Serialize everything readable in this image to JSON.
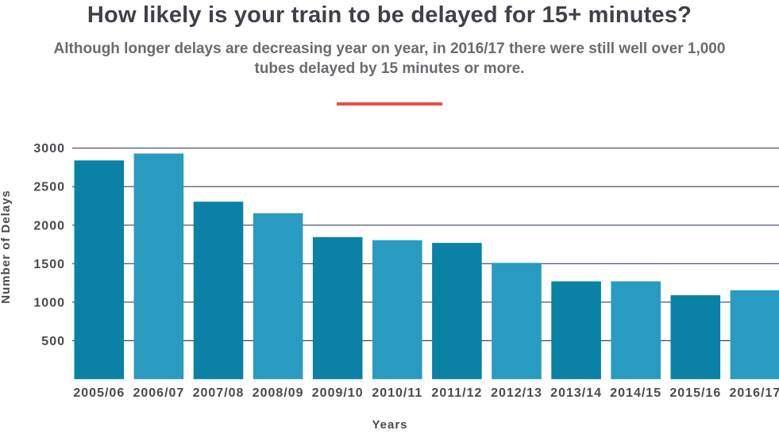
{
  "header": {
    "title": "How likely is your train to be delayed for 15+ minutes?",
    "subtitle": "Although longer delays are decreasing year on year, in 2016/17 there were still well over 1,000 tubes delayed by 15 minutes or more.",
    "accent_color": "#ec4b4b"
  },
  "chart_data": {
    "type": "bar",
    "title": "",
    "xlabel": "Years",
    "ylabel": "Number of Delays",
    "categories": [
      "2005/06",
      "2006/07",
      "2007/08",
      "2008/09",
      "2009/10",
      "2010/11",
      "2011/12",
      "2012/13",
      "2013/14",
      "2014/15",
      "2015/16",
      "2016/17"
    ],
    "values": [
      2840,
      2930,
      2305,
      2155,
      1845,
      1805,
      1770,
      1510,
      1270,
      1270,
      1090,
      1155
    ],
    "yticks": [
      500,
      1000,
      1500,
      2000,
      2500,
      3000
    ],
    "ylim": [
      0,
      3100
    ],
    "grid": "horizontal-only",
    "legend": "none",
    "bar_colors": [
      "#0a81a5",
      "#2a9bc0"
    ],
    "gridline_color": "#35465c",
    "tick_label_color": "#4a4950"
  }
}
